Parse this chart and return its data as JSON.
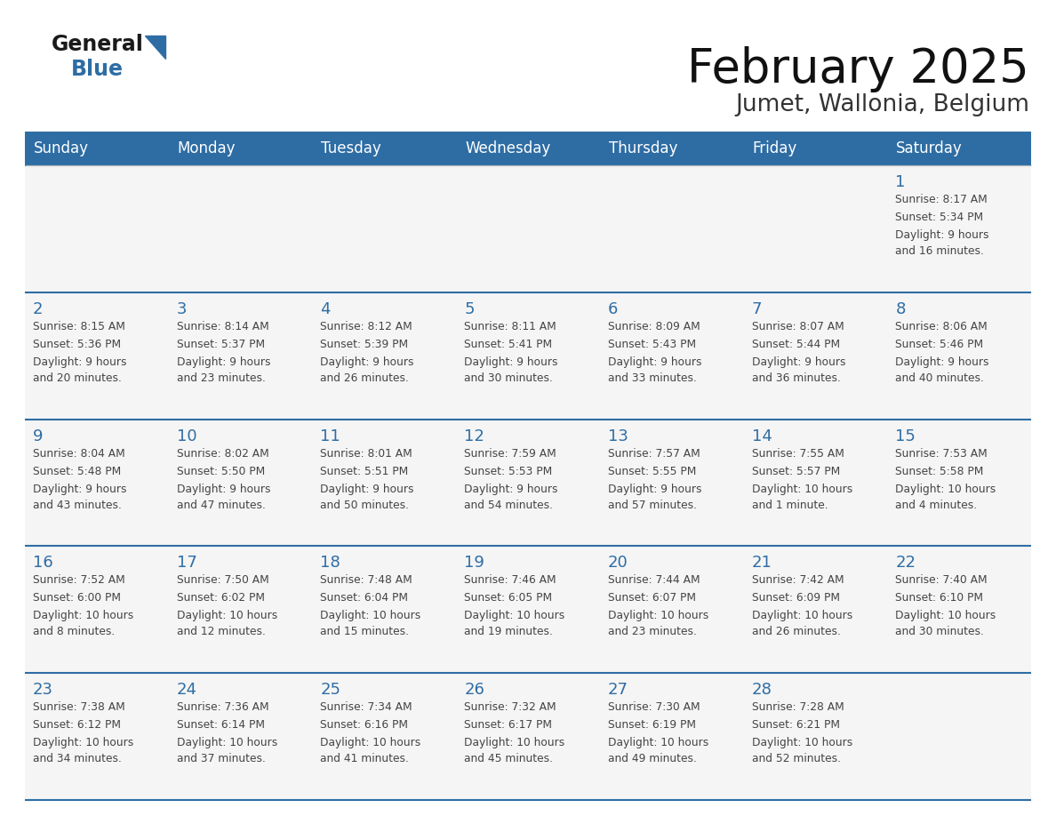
{
  "title": "February 2025",
  "subtitle": "Jumet, Wallonia, Belgium",
  "days_of_week": [
    "Sunday",
    "Monday",
    "Tuesday",
    "Wednesday",
    "Thursday",
    "Friday",
    "Saturday"
  ],
  "header_bg": "#2E6DA4",
  "header_fg": "#FFFFFF",
  "cell_bg": "#F2F2F2",
  "day_number_color": "#2E6DA4",
  "text_color": "#444444",
  "line_color": "#2E6DA4",
  "calendar_data": [
    [
      null,
      null,
      null,
      null,
      null,
      null,
      {
        "day": "1",
        "sunrise": "8:17 AM",
        "sunset": "5:34 PM",
        "daylight_line1": "Daylight: 9 hours",
        "daylight_line2": "and 16 minutes."
      }
    ],
    [
      {
        "day": "2",
        "sunrise": "8:15 AM",
        "sunset": "5:36 PM",
        "daylight_line1": "Daylight: 9 hours",
        "daylight_line2": "and 20 minutes."
      },
      {
        "day": "3",
        "sunrise": "8:14 AM",
        "sunset": "5:37 PM",
        "daylight_line1": "Daylight: 9 hours",
        "daylight_line2": "and 23 minutes."
      },
      {
        "day": "4",
        "sunrise": "8:12 AM",
        "sunset": "5:39 PM",
        "daylight_line1": "Daylight: 9 hours",
        "daylight_line2": "and 26 minutes."
      },
      {
        "day": "5",
        "sunrise": "8:11 AM",
        "sunset": "5:41 PM",
        "daylight_line1": "Daylight: 9 hours",
        "daylight_line2": "and 30 minutes."
      },
      {
        "day": "6",
        "sunrise": "8:09 AM",
        "sunset": "5:43 PM",
        "daylight_line1": "Daylight: 9 hours",
        "daylight_line2": "and 33 minutes."
      },
      {
        "day": "7",
        "sunrise": "8:07 AM",
        "sunset": "5:44 PM",
        "daylight_line1": "Daylight: 9 hours",
        "daylight_line2": "and 36 minutes."
      },
      {
        "day": "8",
        "sunrise": "8:06 AM",
        "sunset": "5:46 PM",
        "daylight_line1": "Daylight: 9 hours",
        "daylight_line2": "and 40 minutes."
      }
    ],
    [
      {
        "day": "9",
        "sunrise": "8:04 AM",
        "sunset": "5:48 PM",
        "daylight_line1": "Daylight: 9 hours",
        "daylight_line2": "and 43 minutes."
      },
      {
        "day": "10",
        "sunrise": "8:02 AM",
        "sunset": "5:50 PM",
        "daylight_line1": "Daylight: 9 hours",
        "daylight_line2": "and 47 minutes."
      },
      {
        "day": "11",
        "sunrise": "8:01 AM",
        "sunset": "5:51 PM",
        "daylight_line1": "Daylight: 9 hours",
        "daylight_line2": "and 50 minutes."
      },
      {
        "day": "12",
        "sunrise": "7:59 AM",
        "sunset": "5:53 PM",
        "daylight_line1": "Daylight: 9 hours",
        "daylight_line2": "and 54 minutes."
      },
      {
        "day": "13",
        "sunrise": "7:57 AM",
        "sunset": "5:55 PM",
        "daylight_line1": "Daylight: 9 hours",
        "daylight_line2": "and 57 minutes."
      },
      {
        "day": "14",
        "sunrise": "7:55 AM",
        "sunset": "5:57 PM",
        "daylight_line1": "Daylight: 10 hours",
        "daylight_line2": "and 1 minute."
      },
      {
        "day": "15",
        "sunrise": "7:53 AM",
        "sunset": "5:58 PM",
        "daylight_line1": "Daylight: 10 hours",
        "daylight_line2": "and 4 minutes."
      }
    ],
    [
      {
        "day": "16",
        "sunrise": "7:52 AM",
        "sunset": "6:00 PM",
        "daylight_line1": "Daylight: 10 hours",
        "daylight_line2": "and 8 minutes."
      },
      {
        "day": "17",
        "sunrise": "7:50 AM",
        "sunset": "6:02 PM",
        "daylight_line1": "Daylight: 10 hours",
        "daylight_line2": "and 12 minutes."
      },
      {
        "day": "18",
        "sunrise": "7:48 AM",
        "sunset": "6:04 PM",
        "daylight_line1": "Daylight: 10 hours",
        "daylight_line2": "and 15 minutes."
      },
      {
        "day": "19",
        "sunrise": "7:46 AM",
        "sunset": "6:05 PM",
        "daylight_line1": "Daylight: 10 hours",
        "daylight_line2": "and 19 minutes."
      },
      {
        "day": "20",
        "sunrise": "7:44 AM",
        "sunset": "6:07 PM",
        "daylight_line1": "Daylight: 10 hours",
        "daylight_line2": "and 23 minutes."
      },
      {
        "day": "21",
        "sunrise": "7:42 AM",
        "sunset": "6:09 PM",
        "daylight_line1": "Daylight: 10 hours",
        "daylight_line2": "and 26 minutes."
      },
      {
        "day": "22",
        "sunrise": "7:40 AM",
        "sunset": "6:10 PM",
        "daylight_line1": "Daylight: 10 hours",
        "daylight_line2": "and 30 minutes."
      }
    ],
    [
      {
        "day": "23",
        "sunrise": "7:38 AM",
        "sunset": "6:12 PM",
        "daylight_line1": "Daylight: 10 hours",
        "daylight_line2": "and 34 minutes."
      },
      {
        "day": "24",
        "sunrise": "7:36 AM",
        "sunset": "6:14 PM",
        "daylight_line1": "Daylight: 10 hours",
        "daylight_line2": "and 37 minutes."
      },
      {
        "day": "25",
        "sunrise": "7:34 AM",
        "sunset": "6:16 PM",
        "daylight_line1": "Daylight: 10 hours",
        "daylight_line2": "and 41 minutes."
      },
      {
        "day": "26",
        "sunrise": "7:32 AM",
        "sunset": "6:17 PM",
        "daylight_line1": "Daylight: 10 hours",
        "daylight_line2": "and 45 minutes."
      },
      {
        "day": "27",
        "sunrise": "7:30 AM",
        "sunset": "6:19 PM",
        "daylight_line1": "Daylight: 10 hours",
        "daylight_line2": "and 49 minutes."
      },
      {
        "day": "28",
        "sunrise": "7:28 AM",
        "sunset": "6:21 PM",
        "daylight_line1": "Daylight: 10 hours",
        "daylight_line2": "and 52 minutes."
      },
      null
    ]
  ],
  "logo_color_general": "#1a1a1a",
  "logo_color_blue": "#2E6DA4"
}
